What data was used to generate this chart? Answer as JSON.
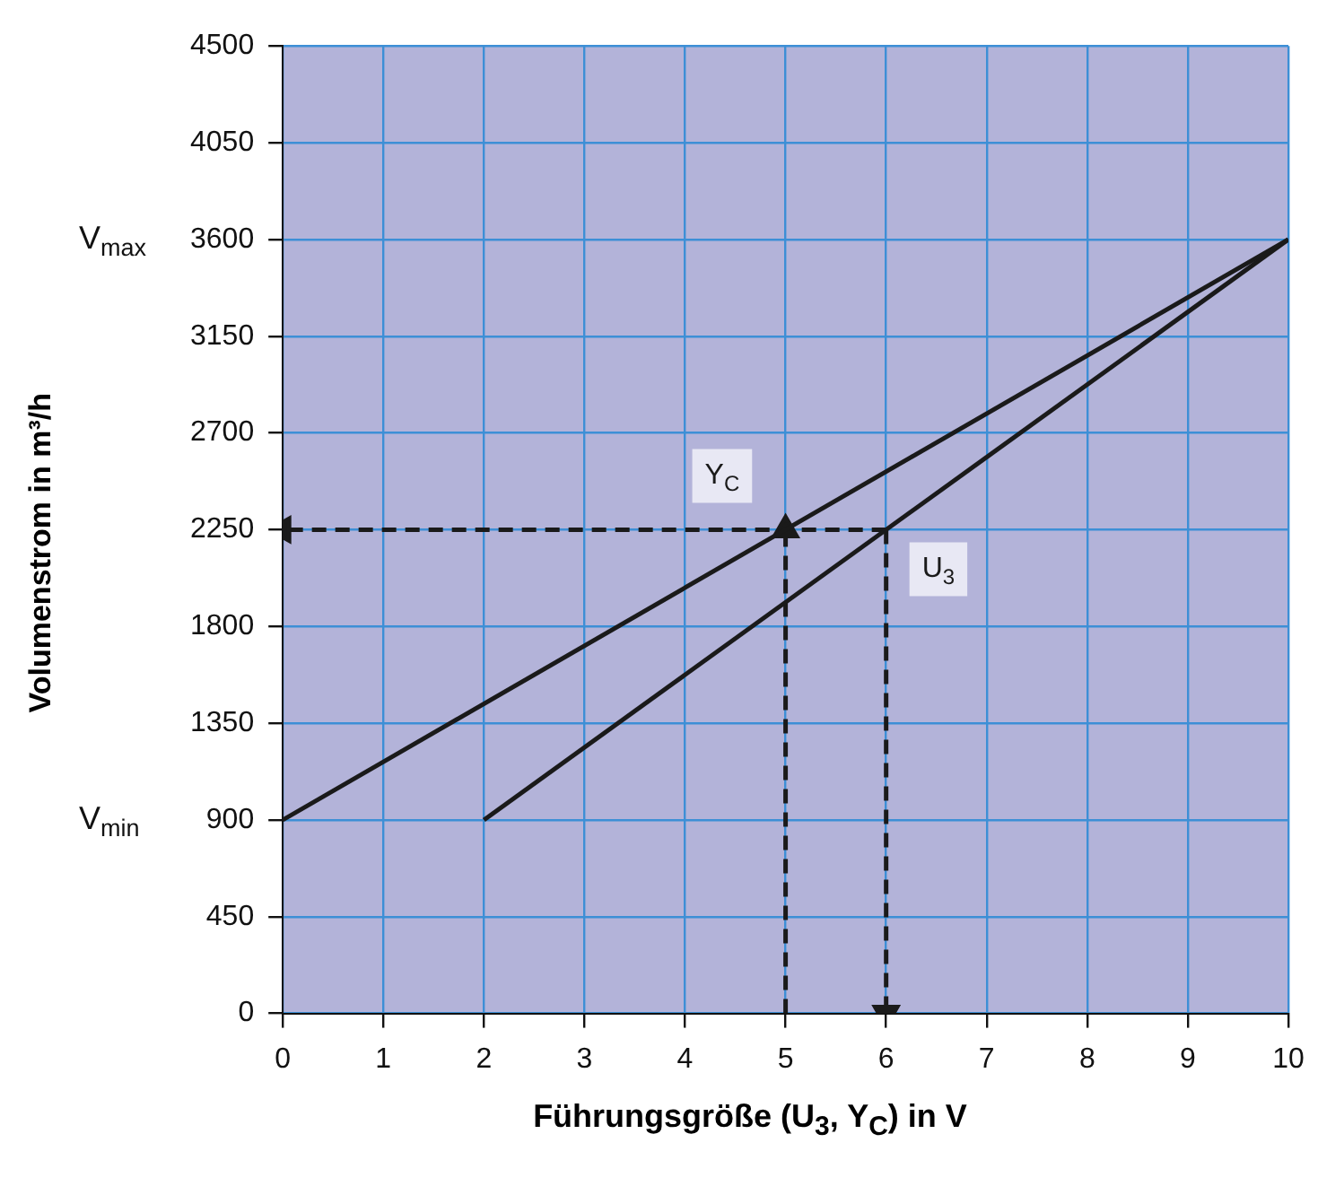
{
  "chart_data": {
    "type": "line",
    "xlabel": "Führungsgröße (U$_{3}$, Y$_{C}$) in V",
    "ylabel": "Volumenstrom in m³/h",
    "xlim": [
      0,
      10
    ],
    "xticks": [
      0,
      1,
      2,
      3,
      4,
      5,
      6,
      7,
      8,
      9,
      10
    ],
    "ylim": [
      0,
      4500
    ],
    "yticks": [
      0,
      450,
      900,
      1350,
      1800,
      2250,
      2700,
      3150,
      3600,
      4050,
      4500
    ],
    "grid": true,
    "legend": false,
    "marker": "none",
    "series": [
      {
        "name": "Y$_{C}$",
        "color": "#1a1a1a",
        "x": [
          0,
          10
        ],
        "values": [
          900,
          3600
        ],
        "line_style": "solid"
      },
      {
        "name": "U$_{3}$",
        "color": "#1a1a1a",
        "x": [
          2,
          10
        ],
        "values": [
          900,
          3600
        ],
        "line_style": "solid"
      },
      {
        "color": "#1a1a1a",
        "x": [
          6,
          0
        ],
        "values": [
          2250,
          2250
        ],
        "line_style": "dashed",
        "marker": "triangle"
      },
      {
        "color": "#1a1a1a",
        "x": [
          5,
          5
        ],
        "values": [
          0,
          2250
        ],
        "line_style": "dashed",
        "marker": "triangle"
      },
      {
        "color": "#1a1a1a",
        "x": [
          6,
          6
        ],
        "values": [
          2250,
          0
        ],
        "line_style": "dashed",
        "marker": "triangle"
      }
    ],
    "annotations": [
      "V$_{max}$",
      "V$_{min}$"
    ]
  }
}
